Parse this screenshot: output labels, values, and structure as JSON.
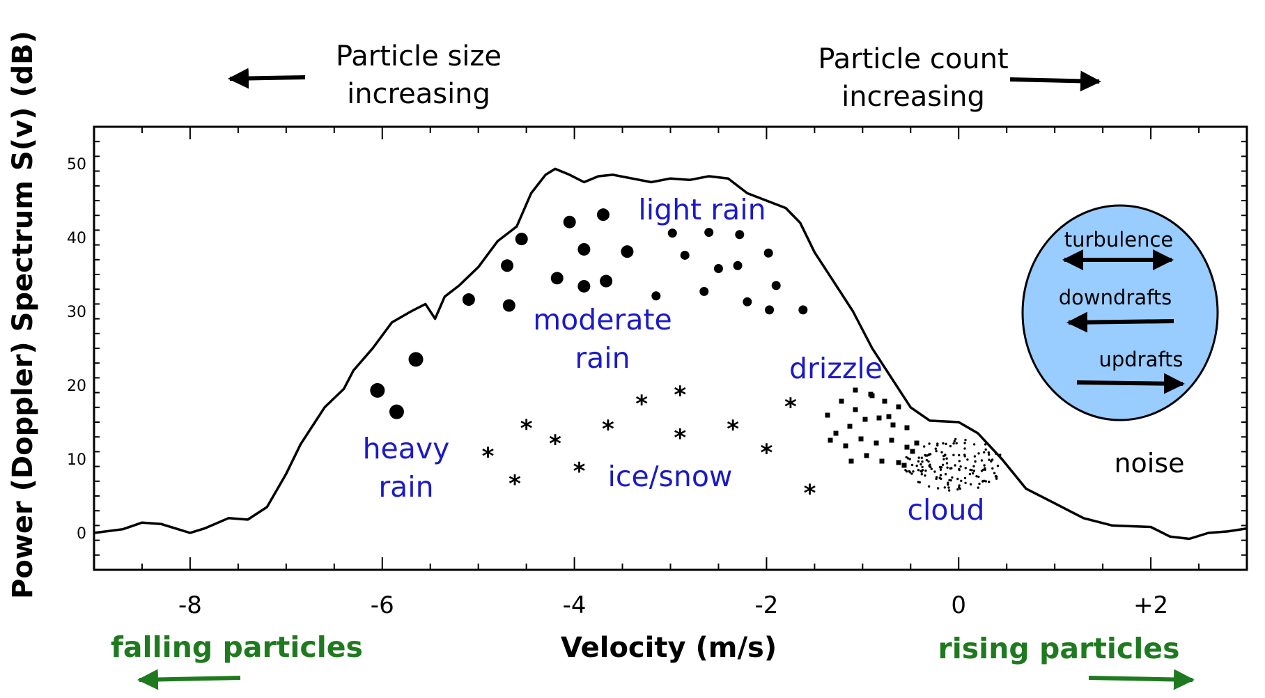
{
  "header": {
    "size_line1": "Particle size",
    "size_line2": "increasing",
    "count_line1": "Particle count",
    "count_line2": "increasing"
  },
  "footer": {
    "falling": "falling particles",
    "rising": "rising particles"
  },
  "legend": {
    "items": [
      "turbulence",
      "downdrafts",
      "updrafts"
    ],
    "fill": "#99ccff"
  },
  "colors": {
    "label_blue": "#1a1ac8",
    "label_green": "#1f7a1f",
    "line": "#000000"
  },
  "chart_data": {
    "type": "line",
    "xlabel": "Velocity (m/s)",
    "ylabel": "Power (Doppler) Spectrum S(v) (dB)",
    "xlim": [
      -9,
      3
    ],
    "ylim": [
      -5,
      55
    ],
    "x_ticks": [
      -8,
      -6,
      -4,
      -2,
      0,
      2
    ],
    "x_tick_labels": [
      "-8",
      "-6",
      "-4",
      "-2",
      "0",
      "+2"
    ],
    "y_ticks": [
      0,
      10,
      20,
      30,
      40,
      50
    ],
    "y_tick_labels": [
      "0",
      "10",
      "20",
      "30",
      "40",
      "50"
    ],
    "series": [
      {
        "x": [
          -9,
          -8.7,
          -8.5,
          -8.3,
          -8.0,
          -7.85,
          -7.6,
          -7.4,
          -7.2,
          -7.0,
          -6.85,
          -6.7,
          -6.6,
          -6.4,
          -6.3,
          -6.1,
          -5.9,
          -5.7,
          -5.55,
          -5.45,
          -5.35,
          -5.2,
          -5.0,
          -4.8,
          -4.6,
          -4.45,
          -4.3,
          -4.2,
          -4.05,
          -3.9,
          -3.75,
          -3.6,
          -3.4,
          -3.2,
          -3.0,
          -2.8,
          -2.6,
          -2.4,
          -2.2,
          -2.0,
          -1.8,
          -1.65,
          -1.5,
          -1.3,
          -1.1,
          -0.9,
          -0.7,
          -0.5,
          -0.3,
          0.0,
          0.2,
          0.45,
          0.7,
          1.0,
          1.3,
          1.6,
          2.0,
          2.2,
          2.4,
          2.6,
          2.8,
          3.0
        ],
        "y": [
          0,
          0.5,
          1.4,
          1.2,
          0,
          0.6,
          2,
          1.8,
          3.5,
          8,
          12,
          15,
          17,
          19.5,
          22,
          25,
          28.5,
          30,
          31,
          29,
          32,
          33.5,
          36,
          39.5,
          41.5,
          46,
          48.5,
          49.3,
          48.5,
          47.5,
          48.3,
          48.5,
          48,
          47.5,
          48,
          47.8,
          48.3,
          48,
          46,
          45,
          44,
          42,
          38,
          34,
          30,
          25,
          21,
          17,
          15.2,
          15,
          13.5,
          10,
          6,
          4,
          2,
          1,
          0.8,
          -0.5,
          -0.8,
          0,
          0.2,
          0.6
        ]
      }
    ],
    "annotations": [
      "light rain",
      "moderate",
      "rain",
      "drizzle",
      "heavy",
      "rain",
      "ice/snow",
      "cloud",
      "noise"
    ],
    "markers": {
      "heavy_rain": [
        [
          -6.05,
          19.3
        ],
        [
          -5.85,
          16.4
        ],
        [
          -5.65,
          23.5
        ]
      ],
      "moderate_rain": [
        [
          -5.1,
          31.6
        ],
        [
          -4.7,
          36.2
        ],
        [
          -4.68,
          30.8
        ],
        [
          -4.55,
          39.8
        ],
        [
          -4.18,
          34.5
        ],
        [
          -4.05,
          42.1
        ],
        [
          -3.9,
          38.4
        ],
        [
          -3.9,
          33.4
        ],
        [
          -3.7,
          43.1
        ],
        [
          -3.67,
          34.1
        ],
        [
          -3.45,
          38.1
        ]
      ],
      "light_rain": [
        [
          -3.15,
          32.1
        ],
        [
          -2.98,
          40.6
        ],
        [
          -2.85,
          37.6
        ],
        [
          -2.65,
          32.7
        ],
        [
          -2.6,
          40.7
        ],
        [
          -2.5,
          35.8
        ],
        [
          -2.3,
          36.2
        ],
        [
          -2.28,
          40.4
        ],
        [
          -2.2,
          31.3
        ],
        [
          -1.98,
          37.9
        ],
        [
          -1.97,
          30.2
        ],
        [
          -1.9,
          33.5
        ],
        [
          -1.62,
          30.2
        ]
      ],
      "ice_snow": [
        [
          -4.9,
          10.6
        ],
        [
          -4.62,
          6.9
        ],
        [
          -4.5,
          14.4
        ],
        [
          -4.2,
          12.3
        ],
        [
          -3.95,
          8.6
        ],
        [
          -3.65,
          14.3
        ],
        [
          -3.3,
          17.7
        ],
        [
          -2.9,
          18.9
        ],
        [
          -2.9,
          13.1
        ],
        [
          -2.35,
          14.3
        ],
        [
          -2.0,
          11.1
        ],
        [
          -1.75,
          17.3
        ],
        [
          -1.55,
          5.6
        ]
      ]
    }
  }
}
